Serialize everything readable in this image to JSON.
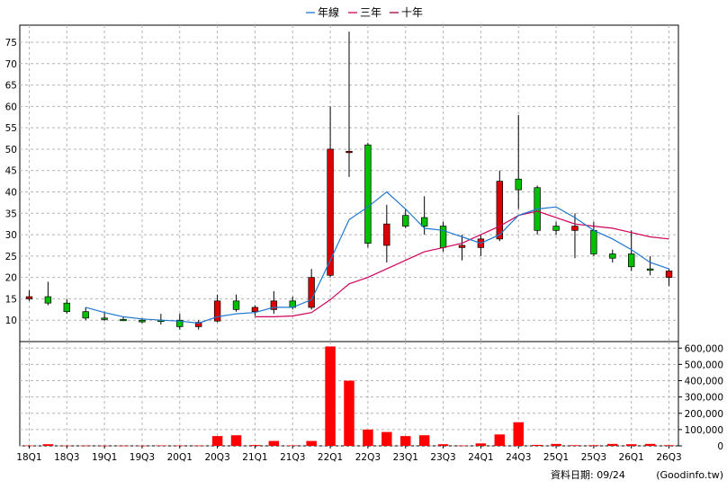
{
  "chart_data": [
    {
      "type": "candlestick",
      "legend": [
        {
          "name": "年線",
          "color": "#1f77d0"
        },
        {
          "name": "三年",
          "color": "#d0005a"
        },
        {
          "name": "十年",
          "color": "#a0004a"
        }
      ],
      "legend_placement": "top-center",
      "ylim": [
        5,
        79
      ],
      "y_ticks": [
        10,
        15,
        20,
        25,
        30,
        35,
        40,
        45,
        50,
        55,
        60,
        65,
        70,
        75
      ],
      "grid": true,
      "x_tick_labels": [
        "18Q1",
        "18Q3",
        "19Q1",
        "19Q3",
        "20Q1",
        "20Q3",
        "21Q1",
        "21Q3",
        "22Q1",
        "22Q3",
        "23Q1",
        "23Q3",
        "24Q1",
        "24Q3",
        "25Q1",
        "25Q3",
        "26Q1",
        "26Q3"
      ],
      "candles": [
        {
          "o": 15.0,
          "h": 17.0,
          "l": 14.5,
          "c": 15.5
        },
        {
          "o": 15.5,
          "h": 19.0,
          "l": 13.5,
          "c": 14.0
        },
        {
          "o": 14.0,
          "h": 15.0,
          "l": 11.5,
          "c": 12.0
        },
        {
          "o": 12.0,
          "h": 13.0,
          "l": 10.0,
          "c": 10.5
        },
        {
          "o": 10.5,
          "h": 12.0,
          "l": 9.8,
          "c": 10.2
        },
        {
          "o": 10.2,
          "h": 10.8,
          "l": 9.8,
          "c": 10.0
        },
        {
          "o": 10.0,
          "h": 10.5,
          "l": 9.3,
          "c": 9.6
        },
        {
          "o": 10.0,
          "h": 11.5,
          "l": 9.0,
          "c": 9.8
        },
        {
          "o": 10.0,
          "h": 11.5,
          "l": 7.8,
          "c": 8.5
        },
        {
          "o": 8.5,
          "h": 10.0,
          "l": 7.8,
          "c": 9.5
        },
        {
          "o": 9.8,
          "h": 16.0,
          "l": 9.5,
          "c": 14.5
        },
        {
          "o": 14.5,
          "h": 16.0,
          "l": 12.0,
          "c": 12.5
        },
        {
          "o": 12.0,
          "h": 13.5,
          "l": 11.0,
          "c": 13.0
        },
        {
          "o": 12.5,
          "h": 16.8,
          "l": 11.5,
          "c": 14.5
        },
        {
          "o": 14.5,
          "h": 15.5,
          "l": 12.5,
          "c": 13.0
        },
        {
          "o": 13.0,
          "h": 22.0,
          "l": 12.5,
          "c": 20.0
        },
        {
          "o": 20.5,
          "h": 60.0,
          "l": 20.0,
          "c": 50.0
        },
        {
          "o": 49.5,
          "h": 77.5,
          "l": 43.5,
          "c": 49.5
        },
        {
          "o": 51.0,
          "h": 51.5,
          "l": 27.0,
          "c": 28.0
        },
        {
          "o": 27.5,
          "h": 37.0,
          "l": 23.5,
          "c": 32.5
        },
        {
          "o": 34.5,
          "h": 36.0,
          "l": 31.5,
          "c": 32.0
        },
        {
          "o": 34.0,
          "h": 39.0,
          "l": 30.0,
          "c": 32.0
        },
        {
          "o": 32.0,
          "h": 33.0,
          "l": 26.0,
          "c": 27.0
        },
        {
          "o": 27.0,
          "h": 30.0,
          "l": 24.0,
          "c": 27.5
        },
        {
          "o": 27.0,
          "h": 30.0,
          "l": 25.0,
          "c": 29.0
        },
        {
          "o": 29.0,
          "h": 45.0,
          "l": 28.5,
          "c": 42.5
        },
        {
          "o": 43.0,
          "h": 58.0,
          "l": 36.0,
          "c": 40.5
        },
        {
          "o": 41.0,
          "h": 41.5,
          "l": 30.0,
          "c": 31.0
        },
        {
          "o": 32.0,
          "h": 33.0,
          "l": 30.0,
          "c": 31.0
        },
        {
          "o": 31.0,
          "h": 35.0,
          "l": 24.5,
          "c": 32.0
        },
        {
          "o": 31.0,
          "h": 33.0,
          "l": 25.0,
          "c": 25.5
        },
        {
          "o": 25.5,
          "h": 26.5,
          "l": 23.5,
          "c": 24.5
        },
        {
          "o": 25.5,
          "h": 31.0,
          "l": 21.5,
          "c": 22.5
        },
        {
          "o": 22.0,
          "h": 25.0,
          "l": 20.5,
          "c": 21.8
        },
        {
          "o": 20.0,
          "h": 22.0,
          "l": 18.0,
          "c": 21.5
        }
      ],
      "ma_year": [
        null,
        null,
        null,
        13.0,
        11.8,
        10.8,
        10.3,
        10.0,
        9.8,
        9.3,
        10.8,
        11.5,
        11.8,
        13.0,
        13.0,
        14.8,
        24.0,
        33.5,
        36.5,
        40.0,
        36.0,
        31.5,
        31.0,
        29.5,
        28.0,
        30.0,
        34.5,
        36.0,
        36.5,
        34.0,
        31.0,
        29.0,
        26.5,
        23.5,
        22.0
      ],
      "ma_three": [
        null,
        null,
        null,
        null,
        null,
        null,
        null,
        null,
        null,
        null,
        null,
        null,
        10.8,
        10.8,
        11.0,
        11.8,
        14.8,
        18.5,
        20.0,
        22.0,
        24.0,
        26.0,
        27.0,
        28.0,
        30.0,
        32.0,
        34.5,
        35.5,
        34.0,
        32.5,
        32.0,
        31.5,
        30.5,
        29.5,
        29.0
      ]
    },
    {
      "type": "bar",
      "ylim": [
        0,
        640000
      ],
      "y_ticks": [
        0,
        100000,
        200000,
        300000,
        400000,
        500000,
        600000
      ],
      "y_tick_labels": [
        "0",
        "100,000",
        "200,000",
        "300,000",
        "400,000",
        "500,000",
        "600,000"
      ],
      "color": "#ff0000",
      "values": [
        2000,
        10000,
        1500,
        1500,
        1000,
        1000,
        1000,
        2500,
        2000,
        2000,
        60000,
        65000,
        5000,
        30000,
        3000,
        30000,
        610000,
        400000,
        100000,
        85000,
        60000,
        65000,
        10000,
        2000,
        15000,
        70000,
        145000,
        6000,
        12000,
        4000,
        4000,
        12000,
        10000,
        12000,
        4000
      ]
    }
  ],
  "footer": {
    "date_label": "資料日期: 09/24",
    "source": "(Goodinfo.tw)"
  }
}
